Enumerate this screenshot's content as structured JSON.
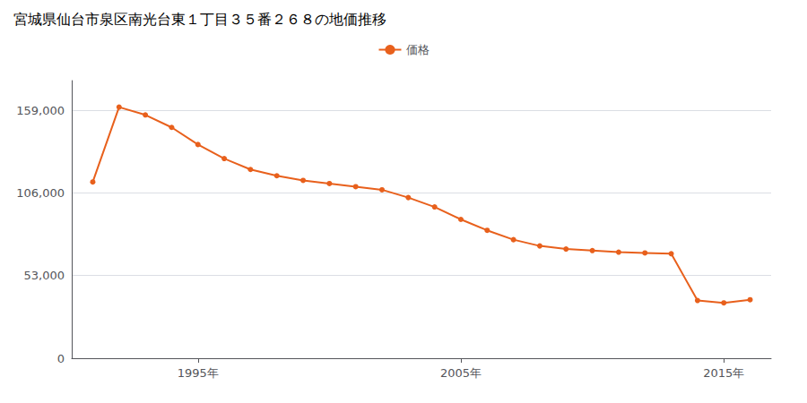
{
  "chart_data": {
    "type": "line",
    "title": "宮城県仙台市泉区南光台東１丁目３５番２６８の地価推移",
    "x": [
      1991,
      1992,
      1993,
      1994,
      1995,
      1996,
      1997,
      1998,
      1999,
      2000,
      2001,
      2002,
      2003,
      2004,
      2005,
      2006,
      2007,
      2008,
      2009,
      2010,
      2011,
      2012,
      2013,
      2014,
      2015,
      2016
    ],
    "series": [
      {
        "name": "価格",
        "color": "#e8601c",
        "values": [
          113000,
          161000,
          156000,
          148000,
          137000,
          128000,
          121000,
          117000,
          114000,
          112000,
          110000,
          108000,
          103000,
          97000,
          89000,
          82000,
          76000,
          72000,
          70000,
          69000,
          68000,
          67500,
          67000,
          37000,
          35500,
          37500
        ]
      }
    ],
    "xlim": [
      1990.2,
      2016.8
    ],
    "xticks": [
      {
        "value": 1995,
        "label": "1995年"
      },
      {
        "value": 2005,
        "label": "2005年"
      },
      {
        "value": 2015,
        "label": "2015年"
      }
    ],
    "ylim": [
      0,
      178000
    ],
    "yticks": [
      0,
      {
        "value": 53000,
        "label": "53,000"
      },
      {
        "value": 106000,
        "label": "106,000"
      },
      {
        "value": 159000,
        "label": "159,000"
      }
    ],
    "grid": true,
    "legend": "top",
    "marker": "circle"
  }
}
